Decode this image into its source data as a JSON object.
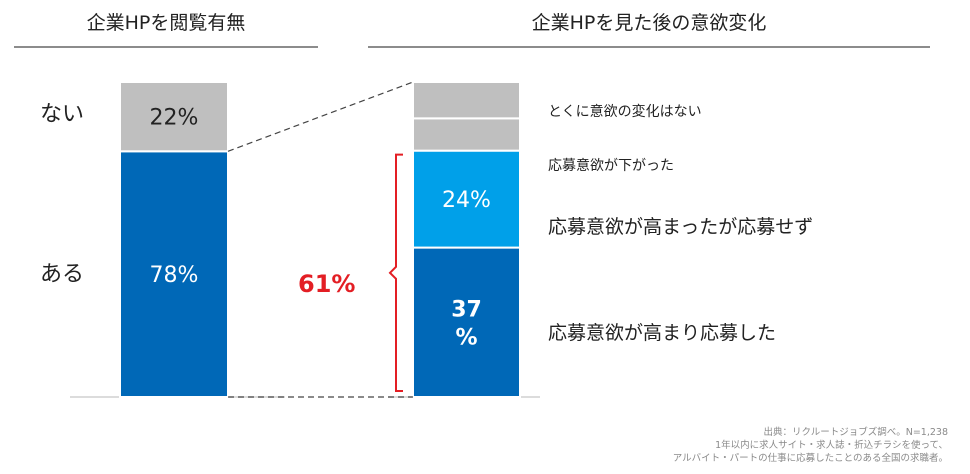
{
  "chart_data": [
    {
      "type": "bar",
      "title": "企業HPを閲覧有無",
      "categories": [
        "ある",
        "ない"
      ],
      "values": [
        78,
        22
      ],
      "value_labels": [
        "78%",
        "22%"
      ],
      "colors": [
        "#0068b7",
        "#bfbfbf"
      ],
      "stacked": true,
      "ylim": [
        0,
        100
      ]
    },
    {
      "type": "bar",
      "title": "企業HPを見た後の意欲変化",
      "categories": [
        "応募意欲が高まり応募した",
        "応募意欲が高まったが応募せず",
        "応募意欲が下がった",
        "とくに意欲の変化はない"
      ],
      "values": [
        37,
        24,
        8,
        9
      ],
      "value_labels": [
        "37\n%",
        "24%",
        "",
        ""
      ],
      "colors": [
        "#0068b7",
        "#00a0e9",
        "#bfbfbf",
        "#bfbfbf"
      ],
      "stacked": true,
      "ylim": [
        0,
        78
      ],
      "bracket": {
        "label": "61%",
        "value": 61,
        "color": "#e31e24"
      }
    }
  ],
  "source_lines": [
    "出典：リクルートジョブズ調べ。N=1,238",
    "1年以内に求人サイト・求人誌・折込チラシを使って、",
    "アルバイト・パートの仕事に応募したことのある全国の求職者。"
  ]
}
